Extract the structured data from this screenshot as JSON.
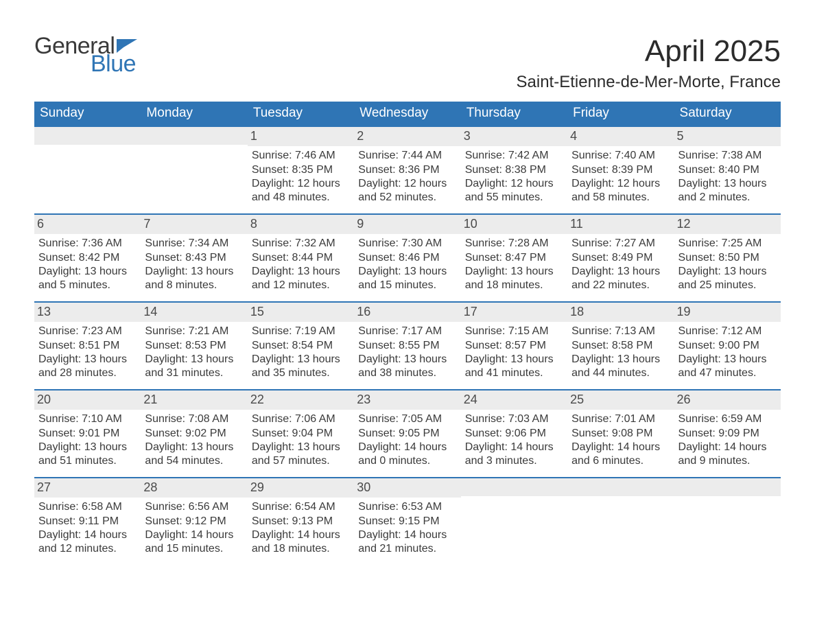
{
  "brand": {
    "general": "General",
    "blue": "Blue",
    "flag_color": "#2f75b5"
  },
  "title": {
    "month": "April 2025",
    "location": "Saint-Etienne-de-Mer-Morte, France"
  },
  "colors": {
    "header_bg": "#2f75b5",
    "header_text": "#ffffff",
    "row_border": "#2f75b5",
    "daynum_bg": "#ececec",
    "body_text": "#3a3a3a"
  },
  "daysOfWeek": [
    "Sunday",
    "Monday",
    "Tuesday",
    "Wednesday",
    "Thursday",
    "Friday",
    "Saturday"
  ],
  "weeks": [
    [
      null,
      null,
      {
        "n": "1",
        "sunrise": "Sunrise: 7:46 AM",
        "sunset": "Sunset: 8:35 PM",
        "dl1": "Daylight: 12 hours",
        "dl2": "and 48 minutes."
      },
      {
        "n": "2",
        "sunrise": "Sunrise: 7:44 AM",
        "sunset": "Sunset: 8:36 PM",
        "dl1": "Daylight: 12 hours",
        "dl2": "and 52 minutes."
      },
      {
        "n": "3",
        "sunrise": "Sunrise: 7:42 AM",
        "sunset": "Sunset: 8:38 PM",
        "dl1": "Daylight: 12 hours",
        "dl2": "and 55 minutes."
      },
      {
        "n": "4",
        "sunrise": "Sunrise: 7:40 AM",
        "sunset": "Sunset: 8:39 PM",
        "dl1": "Daylight: 12 hours",
        "dl2": "and 58 minutes."
      },
      {
        "n": "5",
        "sunrise": "Sunrise: 7:38 AM",
        "sunset": "Sunset: 8:40 PM",
        "dl1": "Daylight: 13 hours",
        "dl2": "and 2 minutes."
      }
    ],
    [
      {
        "n": "6",
        "sunrise": "Sunrise: 7:36 AM",
        "sunset": "Sunset: 8:42 PM",
        "dl1": "Daylight: 13 hours",
        "dl2": "and 5 minutes."
      },
      {
        "n": "7",
        "sunrise": "Sunrise: 7:34 AM",
        "sunset": "Sunset: 8:43 PM",
        "dl1": "Daylight: 13 hours",
        "dl2": "and 8 minutes."
      },
      {
        "n": "8",
        "sunrise": "Sunrise: 7:32 AM",
        "sunset": "Sunset: 8:44 PM",
        "dl1": "Daylight: 13 hours",
        "dl2": "and 12 minutes."
      },
      {
        "n": "9",
        "sunrise": "Sunrise: 7:30 AM",
        "sunset": "Sunset: 8:46 PM",
        "dl1": "Daylight: 13 hours",
        "dl2": "and 15 minutes."
      },
      {
        "n": "10",
        "sunrise": "Sunrise: 7:28 AM",
        "sunset": "Sunset: 8:47 PM",
        "dl1": "Daylight: 13 hours",
        "dl2": "and 18 minutes."
      },
      {
        "n": "11",
        "sunrise": "Sunrise: 7:27 AM",
        "sunset": "Sunset: 8:49 PM",
        "dl1": "Daylight: 13 hours",
        "dl2": "and 22 minutes."
      },
      {
        "n": "12",
        "sunrise": "Sunrise: 7:25 AM",
        "sunset": "Sunset: 8:50 PM",
        "dl1": "Daylight: 13 hours",
        "dl2": "and 25 minutes."
      }
    ],
    [
      {
        "n": "13",
        "sunrise": "Sunrise: 7:23 AM",
        "sunset": "Sunset: 8:51 PM",
        "dl1": "Daylight: 13 hours",
        "dl2": "and 28 minutes."
      },
      {
        "n": "14",
        "sunrise": "Sunrise: 7:21 AM",
        "sunset": "Sunset: 8:53 PM",
        "dl1": "Daylight: 13 hours",
        "dl2": "and 31 minutes."
      },
      {
        "n": "15",
        "sunrise": "Sunrise: 7:19 AM",
        "sunset": "Sunset: 8:54 PM",
        "dl1": "Daylight: 13 hours",
        "dl2": "and 35 minutes."
      },
      {
        "n": "16",
        "sunrise": "Sunrise: 7:17 AM",
        "sunset": "Sunset: 8:55 PM",
        "dl1": "Daylight: 13 hours",
        "dl2": "and 38 minutes."
      },
      {
        "n": "17",
        "sunrise": "Sunrise: 7:15 AM",
        "sunset": "Sunset: 8:57 PM",
        "dl1": "Daylight: 13 hours",
        "dl2": "and 41 minutes."
      },
      {
        "n": "18",
        "sunrise": "Sunrise: 7:13 AM",
        "sunset": "Sunset: 8:58 PM",
        "dl1": "Daylight: 13 hours",
        "dl2": "and 44 minutes."
      },
      {
        "n": "19",
        "sunrise": "Sunrise: 7:12 AM",
        "sunset": "Sunset: 9:00 PM",
        "dl1": "Daylight: 13 hours",
        "dl2": "and 47 minutes."
      }
    ],
    [
      {
        "n": "20",
        "sunrise": "Sunrise: 7:10 AM",
        "sunset": "Sunset: 9:01 PM",
        "dl1": "Daylight: 13 hours",
        "dl2": "and 51 minutes."
      },
      {
        "n": "21",
        "sunrise": "Sunrise: 7:08 AM",
        "sunset": "Sunset: 9:02 PM",
        "dl1": "Daylight: 13 hours",
        "dl2": "and 54 minutes."
      },
      {
        "n": "22",
        "sunrise": "Sunrise: 7:06 AM",
        "sunset": "Sunset: 9:04 PM",
        "dl1": "Daylight: 13 hours",
        "dl2": "and 57 minutes."
      },
      {
        "n": "23",
        "sunrise": "Sunrise: 7:05 AM",
        "sunset": "Sunset: 9:05 PM",
        "dl1": "Daylight: 14 hours",
        "dl2": "and 0 minutes."
      },
      {
        "n": "24",
        "sunrise": "Sunrise: 7:03 AM",
        "sunset": "Sunset: 9:06 PM",
        "dl1": "Daylight: 14 hours",
        "dl2": "and 3 minutes."
      },
      {
        "n": "25",
        "sunrise": "Sunrise: 7:01 AM",
        "sunset": "Sunset: 9:08 PM",
        "dl1": "Daylight: 14 hours",
        "dl2": "and 6 minutes."
      },
      {
        "n": "26",
        "sunrise": "Sunrise: 6:59 AM",
        "sunset": "Sunset: 9:09 PM",
        "dl1": "Daylight: 14 hours",
        "dl2": "and 9 minutes."
      }
    ],
    [
      {
        "n": "27",
        "sunrise": "Sunrise: 6:58 AM",
        "sunset": "Sunset: 9:11 PM",
        "dl1": "Daylight: 14 hours",
        "dl2": "and 12 minutes."
      },
      {
        "n": "28",
        "sunrise": "Sunrise: 6:56 AM",
        "sunset": "Sunset: 9:12 PM",
        "dl1": "Daylight: 14 hours",
        "dl2": "and 15 minutes."
      },
      {
        "n": "29",
        "sunrise": "Sunrise: 6:54 AM",
        "sunset": "Sunset: 9:13 PM",
        "dl1": "Daylight: 14 hours",
        "dl2": "and 18 minutes."
      },
      {
        "n": "30",
        "sunrise": "Sunrise: 6:53 AM",
        "sunset": "Sunset: 9:15 PM",
        "dl1": "Daylight: 14 hours",
        "dl2": "and 21 minutes."
      },
      null,
      null,
      null
    ]
  ]
}
